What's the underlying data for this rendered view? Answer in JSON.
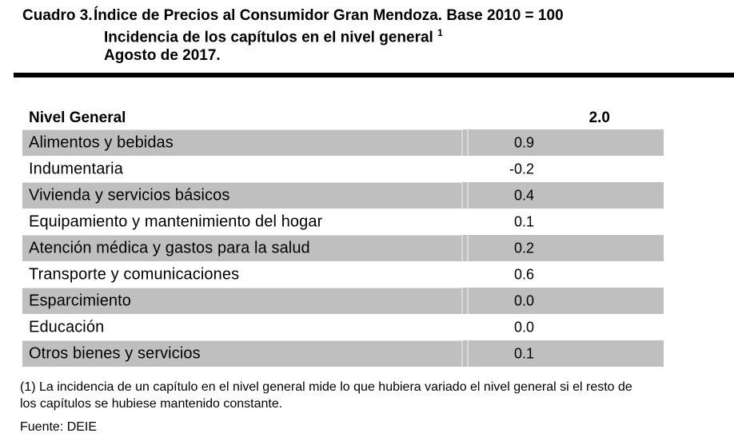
{
  "title": {
    "label": "Cuadro 3.",
    "line1": "Índice de Precios al Consumidor Gran Mendoza. Base 2010 = 100",
    "line2": "Incidencia de los capítulos en el nivel general",
    "line2_sup": "1",
    "line3": "Agosto de 2017."
  },
  "table": {
    "header": {
      "label": "Nivel General",
      "value": "2.0"
    },
    "rows": [
      {
        "label": "Alimentos y bebidas",
        "value": "0.9"
      },
      {
        "label": "Indumentaria",
        "value": "-0.2"
      },
      {
        "label": "Vivienda y servicios básicos",
        "value": "0.4"
      },
      {
        "label": "Equipamiento y mantenimiento del hogar",
        "value": "0.1"
      },
      {
        "label": "Atención médica y gastos para la salud",
        "value": "0.2"
      },
      {
        "label": "Transporte y comunicaciones",
        "value": "0.6"
      },
      {
        "label": "Esparcimiento",
        "value": "0.0"
      },
      {
        "label": "Educación",
        "value": "0.0"
      },
      {
        "label": "Otros bienes y servicios",
        "value": "0.1"
      }
    ],
    "row_shade_color": "#bfbfbf"
  },
  "footnote": {
    "line1": "(1) La incidencia de un capítulo en el nivel general mide lo que hubiera variado el nivel general si el resto de",
    "line2": "los capítulos se hubiese mantenido constante."
  },
  "source": "Fuente: DEIE",
  "chart_data": {
    "type": "table",
    "title": "Índice de Precios al Consumidor Gran Mendoza. Base 2010 = 100 — Incidencia de los capítulos en el nivel general — Agosto de 2017",
    "categories": [
      "Nivel General",
      "Alimentos y bebidas",
      "Indumentaria",
      "Vivienda y servicios básicos",
      "Equipamiento y mantenimiento del hogar",
      "Atención médica y gastos para la salud",
      "Transporte y comunicaciones",
      "Esparcimiento",
      "Educación",
      "Otros bienes y servicios"
    ],
    "values": [
      2.0,
      0.9,
      -0.2,
      0.4,
      0.1,
      0.2,
      0.6,
      0.0,
      0.0,
      0.1
    ]
  }
}
